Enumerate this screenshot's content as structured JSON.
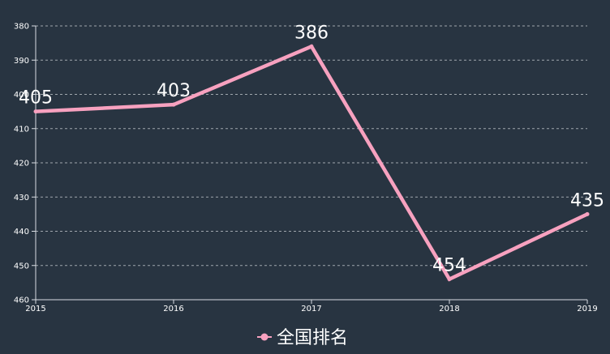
{
  "chart_data": {
    "type": "line",
    "x": [
      "2015",
      "2016",
      "2017",
      "2018",
      "2019"
    ],
    "series": [
      {
        "name": "全国排名",
        "values": [
          405,
          403,
          386,
          454,
          435
        ],
        "color": "#f7a1bf"
      }
    ],
    "ylim": [
      380,
      460
    ],
    "y_inverted": true,
    "y_ticks": [
      "380",
      "390",
      "400",
      "410",
      "420",
      "430",
      "440",
      "450",
      "460"
    ],
    "grid": true,
    "grid_style": "dashed",
    "legend": "bottom-center",
    "background": "#283441",
    "axis_color": "#d9dde3"
  }
}
